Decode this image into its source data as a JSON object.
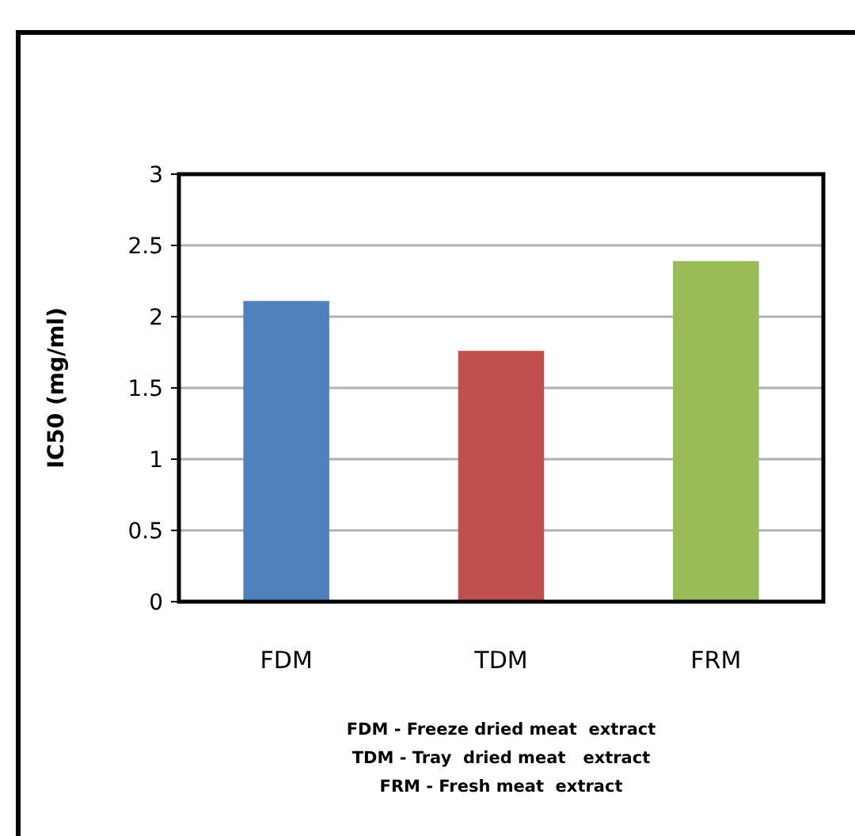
{
  "chart_data": {
    "type": "bar",
    "ylabel": "IC50 (mg/ml)",
    "categories": [
      "FDM",
      "TDM",
      "FRM"
    ],
    "values": [
      2.11,
      1.76,
      2.39
    ],
    "colors": [
      "#4f81bd",
      "#c0504d",
      "#9bbb59"
    ],
    "ylim": [
      0,
      3
    ],
    "yticks": [
      0,
      0.5,
      1,
      1.5,
      2,
      2.5,
      3
    ],
    "grid": "y",
    "annotations": [
      "FDM - Freeze dried meat  extract",
      "TDM - Tray  dried meat   extract",
      "FRM - Fresh meat  extract"
    ]
  }
}
